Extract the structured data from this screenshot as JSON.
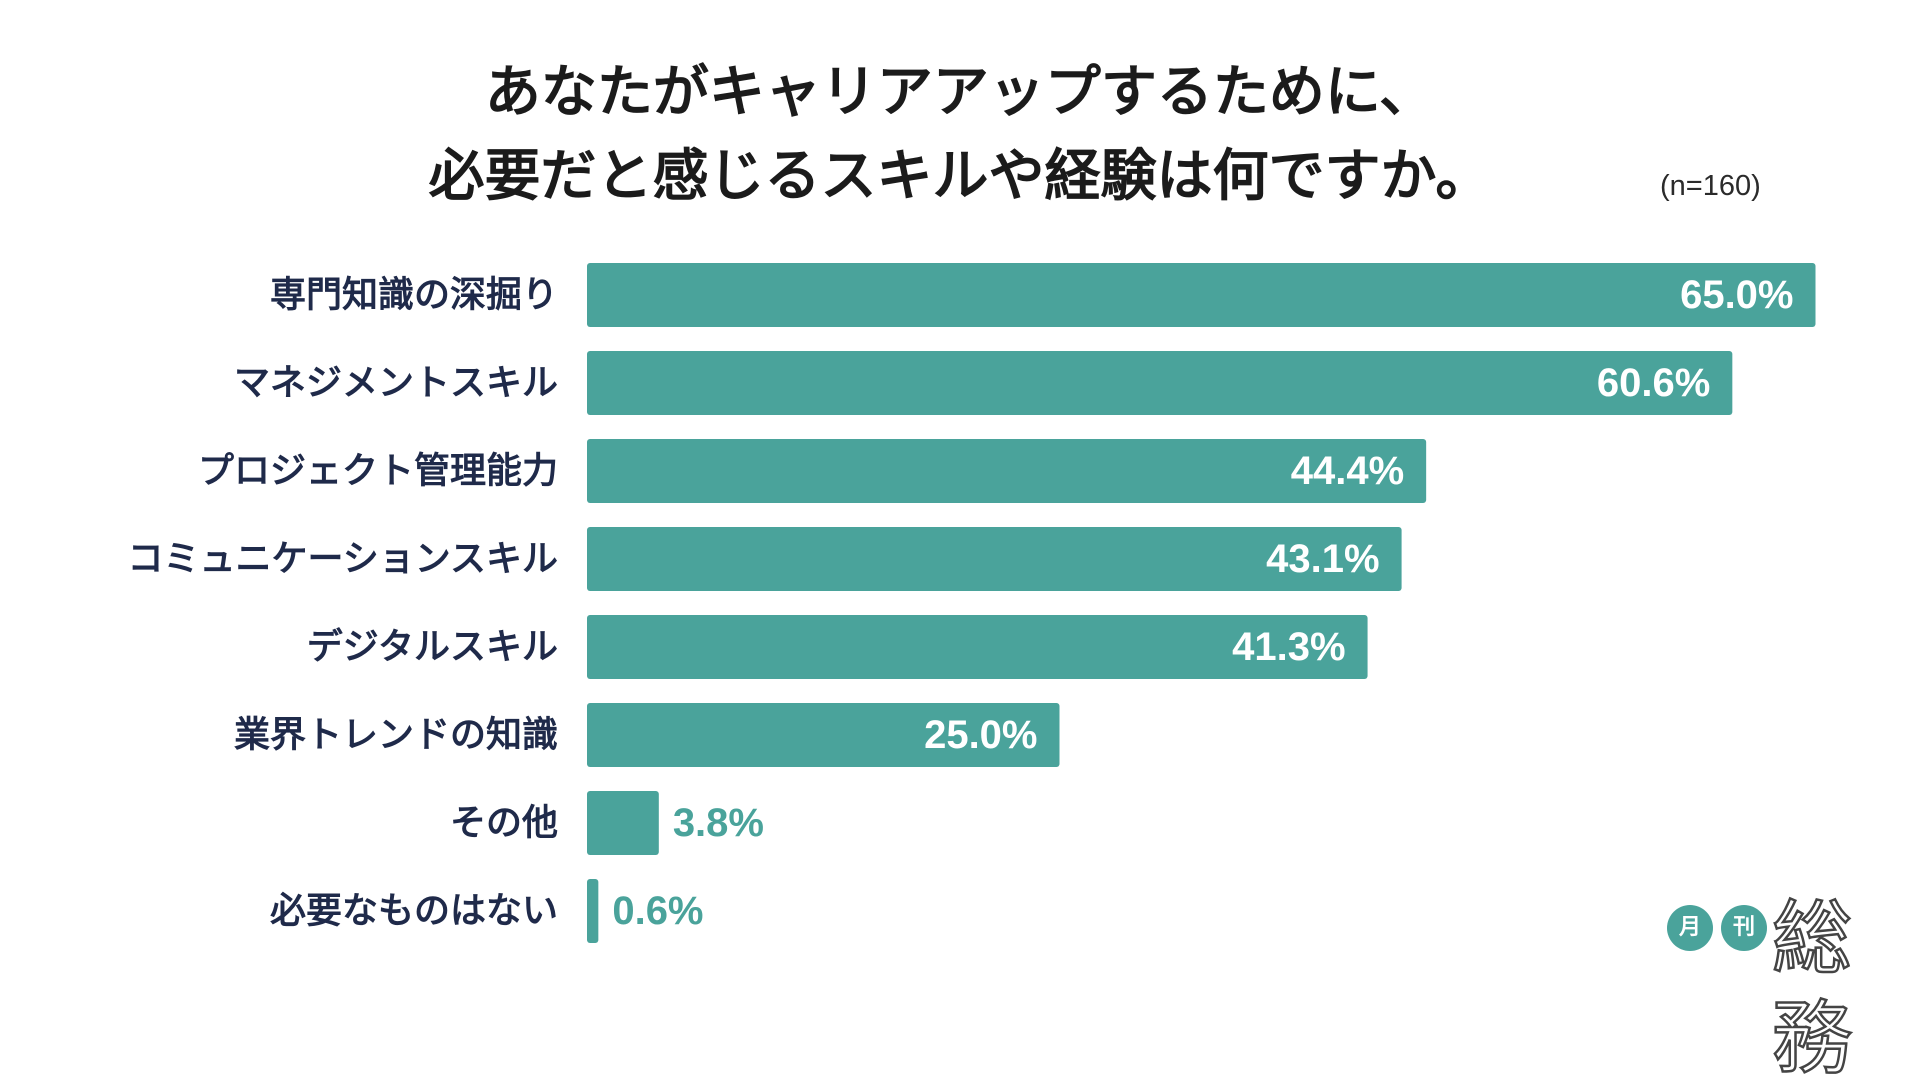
{
  "title_line1": "あなたがキャリアアップするために、",
  "title_line2": "必要だと感じるスキルや経験は何ですか。",
  "sample_size": "(n=160)",
  "logo": {
    "circle1": "月",
    "circle2": "刊",
    "word": "総務"
  },
  "colors": {
    "bar": "#4aa39b",
    "category_label": "#1f2a4a",
    "value_inside": "#ffffff",
    "value_outside": "#4aa39b"
  },
  "chart_data": {
    "type": "bar",
    "orientation": "horizontal",
    "categories": [
      "専門知識の深掘り",
      "マネジメントスキル",
      "プロジェクト管理能力",
      "コミュニケーションスキル",
      "デジタルスキル",
      "業界トレンドの知識",
      "その他",
      "必要なものはない"
    ],
    "values": [
      65.0,
      60.6,
      44.4,
      43.1,
      41.3,
      25.0,
      3.8,
      0.6
    ],
    "value_labels": [
      "65.0%",
      "60.6%",
      "44.4%",
      "43.1%",
      "41.3%",
      "25.0%",
      "3.8%",
      "0.6%"
    ],
    "unit": "%",
    "grid": false,
    "legend": false
  }
}
